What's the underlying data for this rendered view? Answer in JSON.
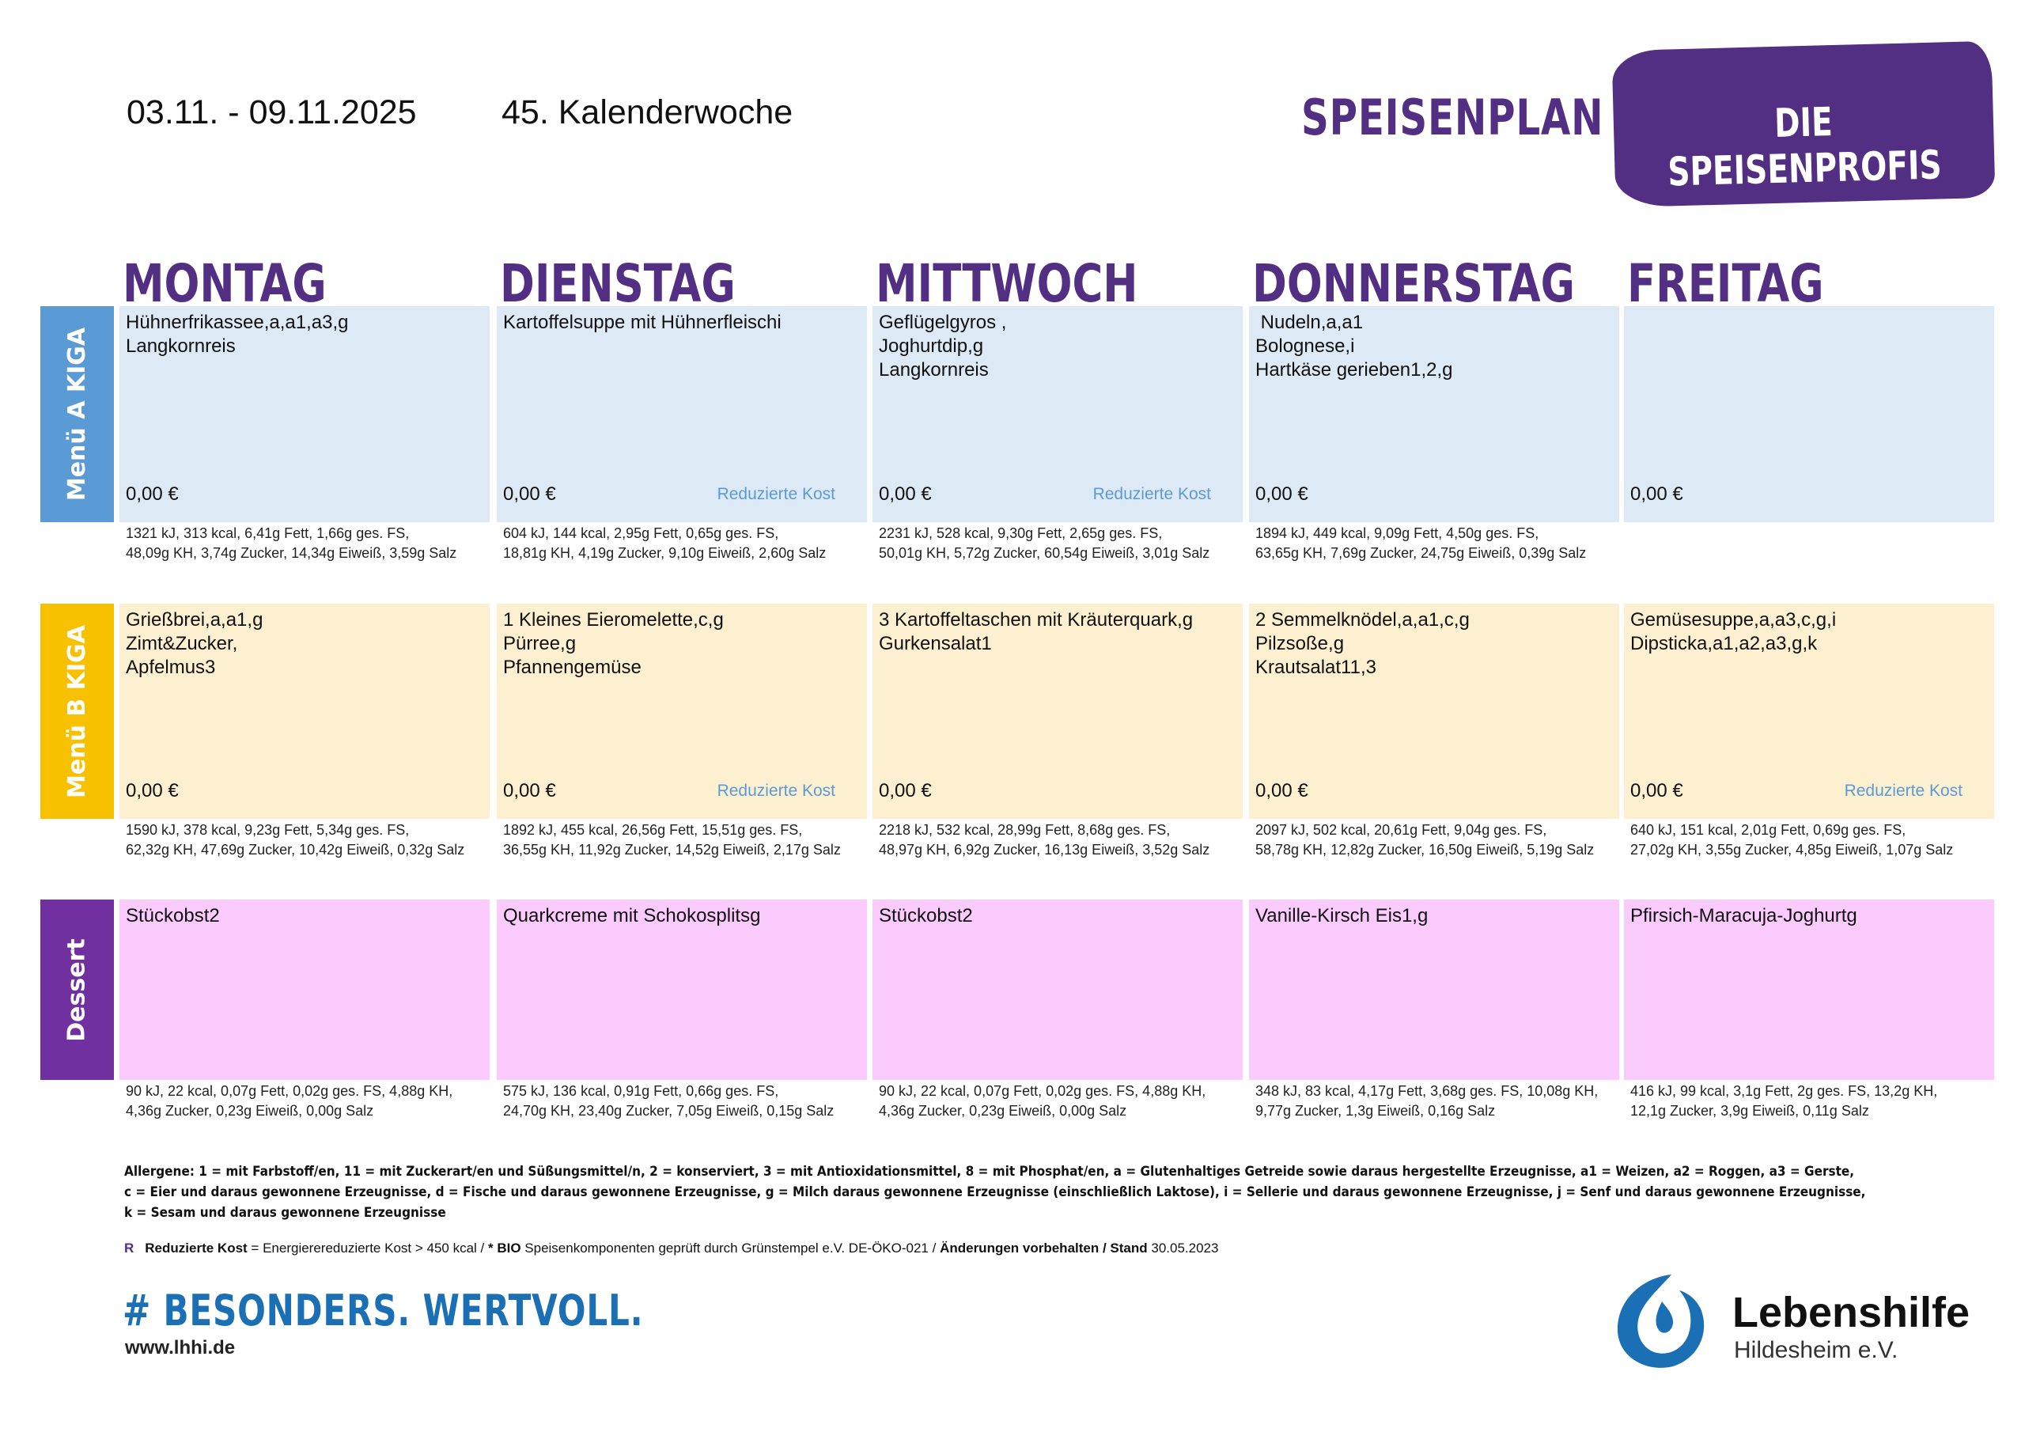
{
  "header": {
    "date_range": "03.11. - 09.11.2025",
    "week": "45. Kalenderwoche",
    "title": "SPEISENPLAN",
    "brand": "DIE SPEISENPROFIS"
  },
  "days": [
    "MONTAG",
    "DIENSTAG",
    "MITTWOCH",
    "DONNERSTAG",
    "FREITAG"
  ],
  "colors": {
    "purple": "#522f82",
    "blue_light": "#dde9f5",
    "blue": "#5b9bd5",
    "yellow_light": "#fdf0d0",
    "yellow": "#f8c100",
    "pink": "#fccbfd",
    "violet": "#7030a0"
  },
  "reduced_label": "Reduzierte Kost",
  "rows": [
    {
      "label": "Menü A KIGA",
      "color": "#5b9bd5",
      "bg": "#dde9f5",
      "cells": [
        {
          "lines": [
            "Hühnerfrikassee,a,a1,a3,g",
            "Langkornreis"
          ],
          "price": "0,00 €",
          "reduced": false,
          "nutrition": [
            "1321 kJ, 313 kcal, 6,41g Fett, 1,66g ges. FS,",
            "48,09g KH, 3,74g Zucker, 14,34g Eiweiß, 3,59g Salz"
          ]
        },
        {
          "lines": [
            "Kartoffelsuppe mit Hühnerfleischi"
          ],
          "price": "0,00 €",
          "reduced": true,
          "nutrition": [
            "604 kJ, 144 kcal, 2,95g Fett, 0,65g ges. FS,",
            "18,81g KH, 4,19g Zucker, 9,10g Eiweiß, 2,60g Salz"
          ]
        },
        {
          "lines": [
            "Geflügelgyros ,",
            "Joghurtdip,g",
            "Langkornreis"
          ],
          "price": "0,00 €",
          "reduced": true,
          "nutrition": [
            "2231 kJ, 528 kcal, 9,30g Fett, 2,65g ges. FS,",
            "50,01g KH, 5,72g Zucker, 60,54g Eiweiß, 3,01g Salz"
          ]
        },
        {
          "lines": [
            " Nudeln,a,a1",
            "Bolognese,i",
            "Hartkäse gerieben1,2,g"
          ],
          "price": "0,00 €",
          "reduced": false,
          "nutrition": [
            "1894 kJ, 449 kcal, 9,09g Fett, 4,50g ges. FS,",
            "63,65g KH, 7,69g Zucker, 24,75g Eiweiß, 0,39g Salz"
          ]
        },
        {
          "lines": [],
          "price": "0,00 €",
          "reduced": false,
          "nutrition": []
        }
      ]
    },
    {
      "label": "Menü B KIGA",
      "color": "#f8c100",
      "bg": "#fdf0d0",
      "cells": [
        {
          "lines": [
            "Grießbrei,a,a1,g",
            "Zimt&Zucker,",
            "Apfelmus3"
          ],
          "price": "0,00 €",
          "reduced": false,
          "nutrition": [
            "1590 kJ, 378 kcal, 9,23g Fett, 5,34g ges. FS,",
            "62,32g KH, 47,69g Zucker, 10,42g Eiweiß, 0,32g Salz"
          ]
        },
        {
          "lines": [
            "1 Kleines Eieromelette,c,g",
            "Pürree,g",
            "Pfannengemüse"
          ],
          "price": "0,00 €",
          "reduced": true,
          "nutrition": [
            "1892 kJ, 455 kcal, 26,56g Fett, 15,51g ges. FS,",
            "36,55g KH, 11,92g Zucker, 14,52g Eiweiß, 2,17g Salz"
          ]
        },
        {
          "lines": [
            "3 Kartoffeltaschen mit Kräuterquark,g",
            "Gurkensalat1"
          ],
          "price": "0,00 €",
          "reduced": false,
          "nutrition": [
            "2218 kJ, 532 kcal, 28,99g Fett, 8,68g ges. FS,",
            "48,97g KH, 6,92g Zucker, 16,13g Eiweiß, 3,52g Salz"
          ]
        },
        {
          "lines": [
            "2 Semmelknödel,a,a1,c,g",
            "Pilzsoße,g",
            "Krautsalat11,3"
          ],
          "price": "0,00 €",
          "reduced": false,
          "nutrition": [
            "2097 kJ, 502 kcal, 20,61g Fett, 9,04g ges. FS,",
            "58,78g KH, 12,82g Zucker, 16,50g Eiweiß, 5,19g Salz"
          ]
        },
        {
          "lines": [
            "Gemüsesuppe,a,a3,c,g,i",
            "Dipsticka,a1,a2,a3,g,k"
          ],
          "price": "0,00 €",
          "reduced": true,
          "nutrition": [
            "640 kJ, 151 kcal, 2,01g Fett, 0,69g ges. FS,",
            "27,02g KH, 3,55g Zucker, 4,85g Eiweiß, 1,07g Salz"
          ]
        }
      ]
    },
    {
      "label": "Dessert",
      "color": "#7030a0",
      "bg": "#fccbfd",
      "cells": [
        {
          "lines": [
            "Stückobst2"
          ],
          "price": "",
          "reduced": false,
          "nutrition": [
            "90 kJ, 22 kcal, 0,07g Fett, 0,02g ges. FS, 4,88g KH,",
            "4,36g Zucker, 0,23g Eiweiß, 0,00g Salz"
          ]
        },
        {
          "lines": [
            "Quarkcreme mit Schokosplitsg"
          ],
          "price": "",
          "reduced": false,
          "nutrition": [
            "575 kJ, 136 kcal, 0,91g Fett, 0,66g ges. FS,",
            "24,70g KH, 23,40g Zucker, 7,05g Eiweiß, 0,15g Salz"
          ]
        },
        {
          "lines": [
            "Stückobst2"
          ],
          "price": "",
          "reduced": false,
          "nutrition": [
            "90 kJ, 22 kcal, 0,07g Fett, 0,02g ges. FS, 4,88g KH,",
            "4,36g Zucker, 0,23g Eiweiß, 0,00g Salz"
          ]
        },
        {
          "lines": [
            "Vanille-Kirsch Eis1,g"
          ],
          "price": "",
          "reduced": false,
          "nutrition": [
            "348 kJ, 83 kcal, 4,17g Fett, 3,68g ges. FS, 10,08g KH,",
            "9,77g Zucker, 1,3g Eiweiß, 0,16g Salz"
          ]
        },
        {
          "lines": [
            "Pfirsich-Maracuja-Joghurtg"
          ],
          "price": "",
          "reduced": false,
          "nutrition": [
            "416 kJ, 99 kcal, 3,1g Fett, 2g ges. FS, 13,2g KH,",
            "12,1g Zucker, 3,9g Eiweiß, 0,11g Salz"
          ]
        }
      ]
    }
  ],
  "allergens": [
    "Allergene: 1 = mit Farbstoff/en, 11 = mit Zuckerart/en und Süßungsmittel/n, 2 = konserviert, 3 = mit Antioxidationsmittel, 8 = mit Phosphat/en, a = Glutenhaltiges Getreide sowie daraus hergestellte Erzeugnisse, a1 = Weizen, a2 = Roggen, a3 = Gerste,",
    "c = Eier und daraus gewonnene Erzeugnisse, d = Fische und daraus gewonnene Erzeugnisse, g = Milch daraus gewonnene Erzeugnisse (einschließlich Laktose), i = Sellerie und daraus gewonnene Erzeugnisse, j = Senf und daraus gewonnene Erzeugnisse,",
    "k = Sesam und daraus gewonnene Erzeugnisse"
  ],
  "legend": {
    "r": "R",
    "reduced_bold": "Reduzierte Kost",
    "reduced_text": " = Energierereduzierte Kost > 450 kcal / ",
    "bio_bold": "* BIO",
    "bio_text": " Speisenkomponenten geprüft durch Grünstempel e.V. DE-ÖKO-021 / ",
    "changes_bold": "Änderungen vorbehalten / Stand",
    "date": " 30.05.2023"
  },
  "footer": {
    "slogan": "# BESONDERS. WERTVOLL.",
    "website": "www.lhhi.de",
    "org_name": "Lebenshilfe",
    "org_sub": "Hildesheim e.V."
  }
}
